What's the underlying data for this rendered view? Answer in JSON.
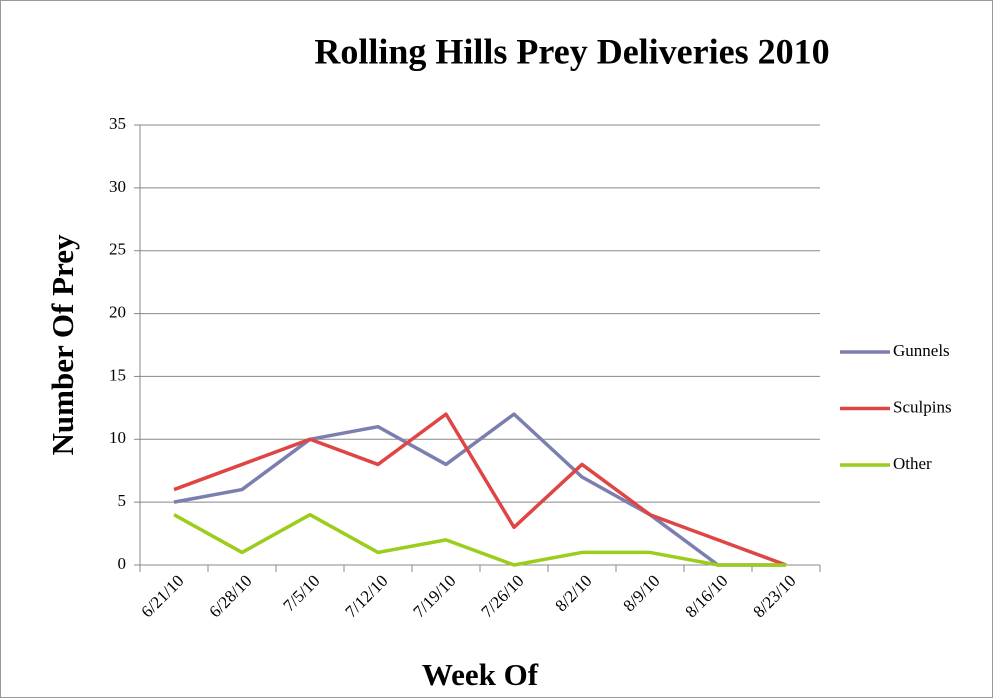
{
  "chart_data": {
    "type": "line",
    "title": "Rolling Hills Prey Deliveries 2010",
    "x_label": "Week Of",
    "y_label": "Number Of Prey",
    "categories": [
      "6/21/10",
      "6/28/10",
      "7/5/10",
      "7/12/10",
      "7/19/10",
      "7/26/10",
      "8/2/10",
      "8/9/10",
      "8/16/10",
      "8/23/10"
    ],
    "series": [
      {
        "name": "Gunnels",
        "color": "#7b7fb0",
        "values": [
          5,
          6,
          10,
          11,
          8,
          12,
          7,
          4,
          0,
          0
        ]
      },
      {
        "name": "Sculpins",
        "color": "#e04545",
        "values": [
          6,
          8,
          10,
          8,
          12,
          3,
          8,
          4,
          2,
          0
        ]
      },
      {
        "name": "Other",
        "color": "#9ccc1c",
        "values": [
          4,
          1,
          4,
          1,
          2,
          0,
          1,
          1,
          0,
          0
        ]
      }
    ],
    "ylim": [
      0,
      35
    ],
    "yticks": [
      0,
      5,
      10,
      15,
      20,
      25,
      30,
      35
    ],
    "grid": true,
    "legend": "right"
  }
}
